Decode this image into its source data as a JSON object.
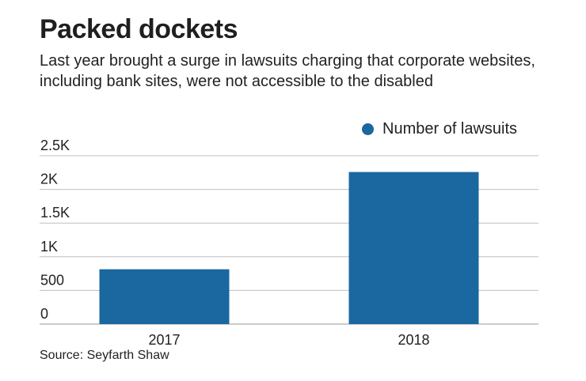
{
  "title": "Packed dockets",
  "subtitle": "Last year brought a surge in lawsuits charging that corporate websites, including bank sites, were not accessible to the disabled",
  "source": "Source: Seyfarth Shaw",
  "colors": {
    "bar": "#1b67a0",
    "gridline": "#bfbfbf"
  },
  "chart_data": {
    "type": "bar",
    "categories": [
      "2017",
      "2018"
    ],
    "series": [
      {
        "name": "Number of lawsuits",
        "values": [
          814,
          2258
        ]
      }
    ],
    "ylim": [
      0,
      2500
    ],
    "yticks": [
      0,
      500,
      1000,
      1500,
      2000,
      2500
    ],
    "ytick_labels": [
      "0",
      "500",
      "1K",
      "1.5K",
      "2K",
      "2.5K"
    ],
    "grid": true,
    "legend_position": "top-right",
    "xlabel": "",
    "ylabel": ""
  }
}
